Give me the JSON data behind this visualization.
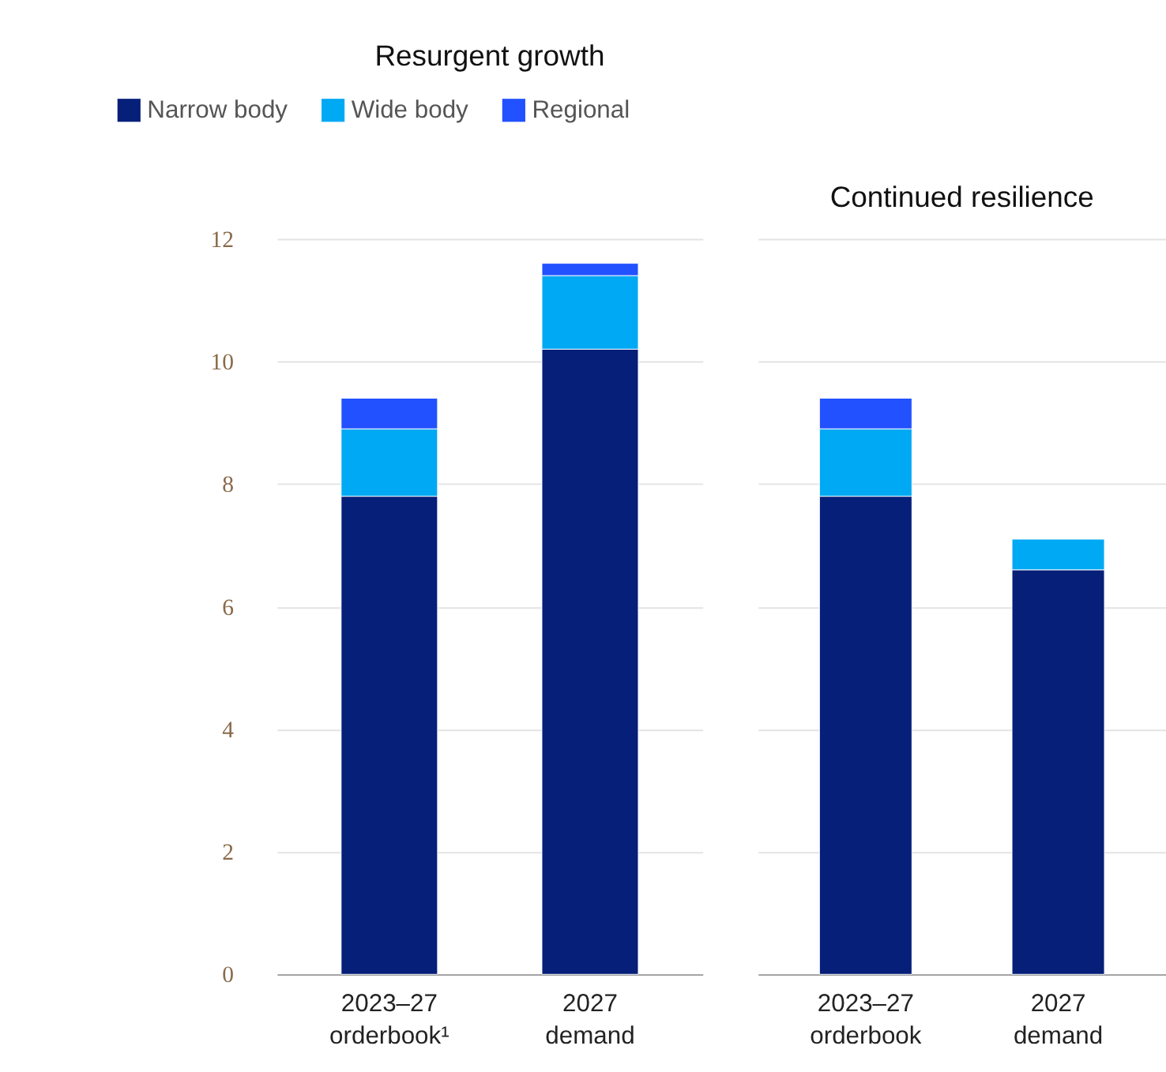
{
  "chart_data": [
    {
      "type": "bar",
      "stacked": true,
      "title": "Resurgent growth",
      "categories": [
        "2023–27 orderbook¹",
        "2027 demand"
      ],
      "ylim": [
        0,
        12
      ],
      "yticks": [
        0,
        2,
        4,
        6,
        8,
        10,
        12
      ],
      "grid": "y",
      "legend": "top left",
      "series": [
        {
          "name": "Narrow body",
          "color": "#061f79",
          "values": [
            7.8,
            10.2
          ]
        },
        {
          "name": "Wide body",
          "color": "#00a9f4",
          "values": [
            1.1,
            1.2
          ]
        },
        {
          "name": "Regional",
          "color": "#2251ff",
          "values": [
            0.5,
            0.2
          ]
        }
      ]
    },
    {
      "type": "bar",
      "stacked": true,
      "title": "Continued resilience",
      "categories": [
        "2023–27 orderbook",
        "2027 demand"
      ],
      "ylim": [
        0,
        12
      ],
      "yticks": [
        0,
        2,
        4,
        6,
        8,
        10,
        12
      ],
      "grid": "y",
      "tick_labels": "x",
      "series": [
        {
          "color": "#061f79",
          "values": [
            7.8,
            6.6
          ]
        },
        {
          "color": "#00a9f4",
          "values": [
            1.1,
            0.5
          ]
        },
        {
          "color": "#2251ff",
          "values": [
            0.5,
            null
          ]
        }
      ]
    }
  ]
}
